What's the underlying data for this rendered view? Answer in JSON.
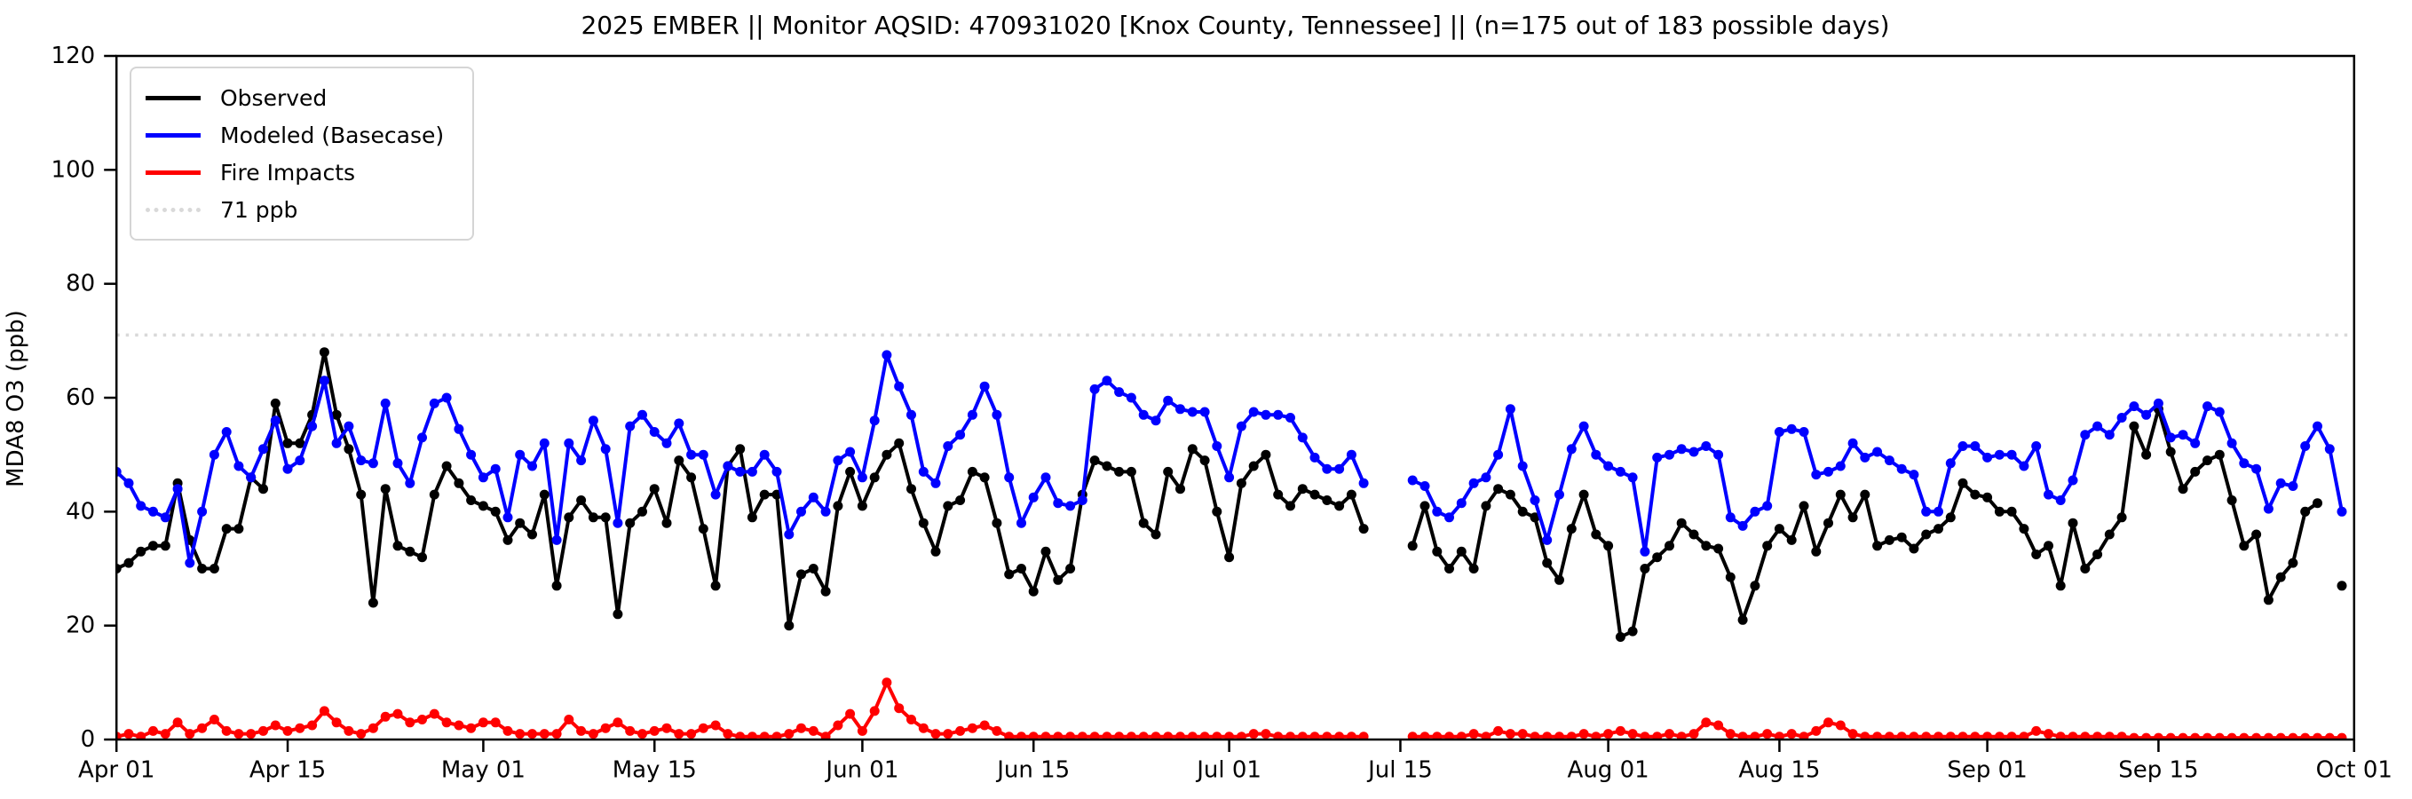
{
  "figure": {
    "title": "2025 EMBER || Monitor AQSID: 470931020 [Knox County, Tennessee] || (n=175 out of 183 possible days)",
    "y_axis_label": "MDA8 O3 (ppb)"
  },
  "legend": {
    "items": [
      {
        "id": "observed",
        "label": "Observed",
        "color": "#000000",
        "style": "solid"
      },
      {
        "id": "modeled",
        "label": "Modeled (Basecase)",
        "color": "#0000ff",
        "style": "solid"
      },
      {
        "id": "fire",
        "label": "Fire Impacts",
        "color": "#ff0000",
        "style": "solid"
      },
      {
        "id": "refline",
        "label": "71 ppb",
        "color": "#d9d9d9",
        "style": "dotted"
      }
    ]
  },
  "chart_data": {
    "type": "line",
    "title": "2025 EMBER || Monitor AQSID: 470931020 [Knox County, Tennessee] || (n=175 out of 183 possible days)",
    "xlabel": "",
    "ylabel": "MDA8 O3 (ppb)",
    "x_unit": "days since Apr 01 (daily values, Apr 01 - Sep 30)",
    "xlim": [
      0,
      183
    ],
    "ylim": [
      0,
      120
    ],
    "grid": false,
    "legend_position": "upper left",
    "x_ticks": [
      {
        "day": 0,
        "label": "Apr 01"
      },
      {
        "day": 14,
        "label": "Apr 15"
      },
      {
        "day": 30,
        "label": "May 01"
      },
      {
        "day": 44,
        "label": "May 15"
      },
      {
        "day": 61,
        "label": "Jun 01"
      },
      {
        "day": 75,
        "label": "Jun 15"
      },
      {
        "day": 91,
        "label": "Jul 01"
      },
      {
        "day": 105,
        "label": "Jul 15"
      },
      {
        "day": 122,
        "label": "Aug 01"
      },
      {
        "day": 136,
        "label": "Aug 15"
      },
      {
        "day": 153,
        "label": "Sep 01"
      },
      {
        "day": 167,
        "label": "Sep 15"
      },
      {
        "day": 183,
        "label": "Oct 01"
      }
    ],
    "y_ticks": [
      0,
      20,
      40,
      60,
      80,
      100,
      120
    ],
    "reference_line": {
      "label": "71 ppb",
      "value": 71,
      "color": "#d9d9d9",
      "style": "dotted"
    },
    "missing_days_note": "gaps (null) = days with no plotted marker: Jul 13-15 all series; Sep 29 observed only",
    "series": [
      {
        "id": "observed",
        "name": "Observed",
        "color": "#000000",
        "values": [
          30,
          31,
          33,
          34,
          34,
          45,
          35,
          30,
          30,
          37,
          37,
          46,
          44,
          59,
          52,
          52,
          57,
          68,
          57,
          51,
          43,
          24,
          44,
          34,
          33,
          32,
          43,
          48,
          45,
          42,
          41,
          40,
          35,
          38,
          36,
          43,
          27,
          39,
          42,
          39,
          39,
          22,
          38,
          40,
          44,
          38,
          49,
          46,
          37,
          27,
          48,
          51,
          39,
          43,
          43,
          20,
          29,
          30,
          26,
          41,
          47,
          41,
          46,
          50,
          52,
          44,
          38,
          33,
          41,
          42,
          47,
          46,
          38,
          29,
          30,
          26,
          33,
          28,
          30,
          43,
          49,
          48,
          47,
          47,
          38,
          36,
          47,
          44,
          51,
          49,
          40,
          32,
          45,
          48,
          50,
          43,
          41,
          44,
          43,
          42,
          41,
          43,
          37,
          null,
          null,
          null,
          34,
          41,
          33,
          30,
          33,
          30,
          41,
          44,
          43,
          40,
          39,
          31,
          28,
          37,
          43,
          36,
          34,
          18,
          19,
          30,
          32,
          34,
          38,
          36,
          34,
          33.5,
          28.5,
          21,
          27,
          34,
          37,
          35,
          41,
          33,
          38,
          43,
          39,
          43,
          34,
          35,
          35.5,
          33.5,
          36,
          37,
          39,
          45,
          43,
          42.5,
          40,
          40,
          37,
          32.5,
          34,
          27,
          38,
          30,
          32.5,
          36,
          39,
          55,
          50,
          58,
          50.5,
          44,
          47,
          49,
          50,
          42,
          34,
          36,
          24.5,
          28.5,
          31,
          40,
          41.5,
          null,
          27
        ]
      },
      {
        "id": "modeled",
        "name": "Modeled (Basecase)",
        "color": "#0000ff",
        "values": [
          47,
          45,
          41,
          40,
          39,
          44,
          31,
          40,
          50,
          54,
          48,
          46,
          51,
          56,
          47.5,
          49,
          55,
          63,
          52,
          55,
          49,
          48.5,
          59,
          48.5,
          45,
          53,
          59,
          60,
          54.5,
          50,
          46,
          47.5,
          39,
          50,
          48,
          52,
          35,
          52,
          49,
          56,
          51,
          38,
          55,
          57,
          54,
          52,
          55.5,
          50,
          50,
          43,
          48,
          47,
          47,
          50,
          47,
          36,
          40,
          42.5,
          40,
          49,
          50.5,
          46,
          56,
          67.5,
          62,
          57,
          47,
          45,
          51.5,
          53.5,
          57,
          62,
          57,
          46,
          38,
          42.5,
          46,
          41.5,
          41,
          42,
          61.5,
          63,
          61,
          60,
          57,
          56,
          59.5,
          58,
          57.5,
          57.5,
          51.5,
          46,
          55,
          57.5,
          57,
          57,
          56.5,
          53,
          49.5,
          47.5,
          47.5,
          50,
          45,
          null,
          null,
          null,
          45.5,
          44.5,
          40,
          39,
          41.5,
          45,
          46,
          50,
          58,
          48,
          42,
          35,
          43,
          51,
          55,
          50,
          48,
          47,
          46,
          33,
          49.5,
          50,
          51,
          50.5,
          51.5,
          50,
          39,
          37.5,
          40,
          41,
          54,
          54.5,
          54,
          46.5,
          47,
          48,
          52,
          49.5,
          50.5,
          49,
          47.5,
          46.5,
          40,
          40,
          48.5,
          51.5,
          51.5,
          49.5,
          50,
          50,
          48,
          51.5,
          43,
          42,
          45.5,
          53.5,
          55,
          53.5,
          56.5,
          58.5,
          57,
          59,
          53,
          53.5,
          52,
          58.5,
          57.5,
          52,
          48.5,
          47.5,
          40.5,
          45,
          44.5,
          51.5,
          55,
          51,
          40
        ]
      },
      {
        "id": "fire",
        "name": "Fire Impacts",
        "color": "#ff0000",
        "values": [
          0.5,
          1,
          0.5,
          1.5,
          1,
          3,
          1,
          2,
          3.5,
          1.5,
          1,
          1,
          1.5,
          2.5,
          1.5,
          2,
          2.5,
          5,
          3,
          1.5,
          1,
          2,
          4,
          4.5,
          3,
          3.5,
          4.5,
          3,
          2.5,
          2,
          3,
          3,
          1.5,
          1,
          1,
          1,
          1,
          3.5,
          1.5,
          1,
          2,
          3,
          1.5,
          1,
          1.5,
          2,
          1,
          1,
          2,
          2.5,
          1,
          0.5,
          0.5,
          0.5,
          0.5,
          1,
          2,
          1.5,
          0.5,
          2.5,
          4.5,
          1.5,
          5,
          10,
          5.5,
          3.5,
          2,
          1,
          1,
          1.5,
          2,
          2.5,
          1.5,
          0.5,
          0.5,
          0.5,
          0.5,
          0.5,
          0.5,
          0.5,
          0.5,
          0.5,
          0.5,
          0.5,
          0.5,
          0.5,
          0.5,
          0.5,
          0.5,
          0.5,
          0.5,
          0.5,
          0.5,
          1,
          1,
          0.5,
          0.5,
          0.5,
          0.5,
          0.5,
          0.5,
          0.5,
          0.5,
          null,
          null,
          null,
          0.5,
          0.5,
          0.5,
          0.5,
          0.5,
          1,
          0.5,
          1.5,
          1,
          1,
          0.5,
          0.5,
          0.5,
          0.5,
          1,
          0.5,
          1,
          1.5,
          1,
          0.5,
          0.5,
          1,
          0.5,
          1,
          3,
          2.5,
          1,
          0.5,
          0.5,
          1,
          0.5,
          1,
          0.5,
          1.5,
          3,
          2.5,
          1,
          0.5,
          0.5,
          0.5,
          0.5,
          0.5,
          0.5,
          0.5,
          0.5,
          0.5,
          0.5,
          0.5,
          0.5,
          0.5,
          0.5,
          1.5,
          1,
          0.5,
          0.5,
          0.5,
          0.5,
          0.5,
          0.5,
          0.3,
          0.3,
          0.3,
          0.3,
          0.3,
          0.3,
          0.3,
          0.3,
          0.3,
          0.3,
          0.3,
          0.3,
          0.3,
          0.3,
          0.3,
          0.3,
          0.3,
          0.3
        ]
      }
    ]
  }
}
